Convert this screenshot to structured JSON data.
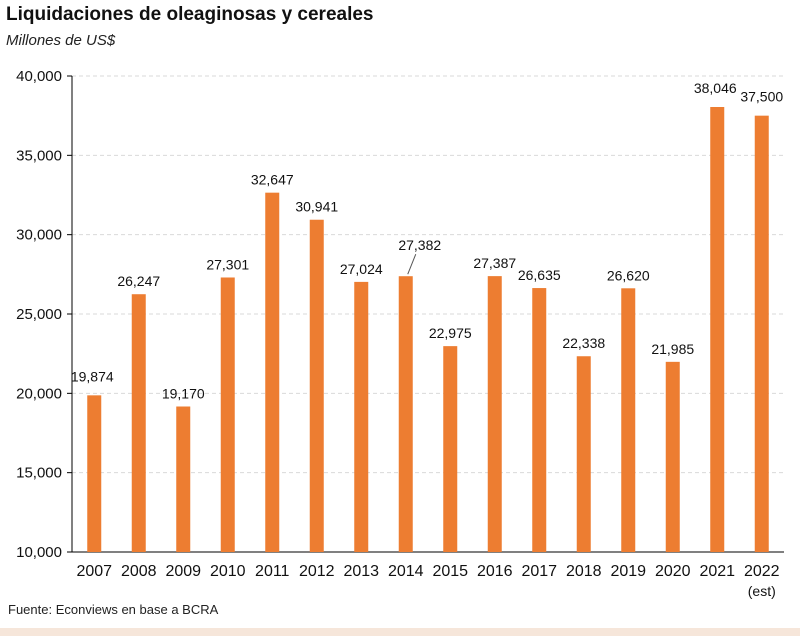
{
  "title": "Liquidaciones de oleaginosas y cereales",
  "subtitle": "Millones de US$",
  "source": "Fuente: Econviews en base a BCRA",
  "colors": {
    "bar": "#ED7D31",
    "grid": "#d9d9d9",
    "axis": "#000000",
    "text": "#111111"
  },
  "chart_data": {
    "type": "bar",
    "categories": [
      "2007",
      "2008",
      "2009",
      "2010",
      "2011",
      "2012",
      "2013",
      "2014",
      "2015",
      "2016",
      "2017",
      "2018",
      "2019",
      "2020",
      "2021",
      "2022"
    ],
    "category_sublabels": [
      "",
      "",
      "",
      "",
      "",
      "",
      "",
      "",
      "",
      "",
      "",
      "",
      "",
      "",
      "",
      "(est)"
    ],
    "values": [
      19874,
      26247,
      19170,
      27301,
      32647,
      30941,
      27024,
      27382,
      22975,
      27387,
      26635,
      22338,
      26620,
      21985,
      38046,
      37500
    ],
    "value_labels": [
      "19,874",
      "26,247",
      "19,170",
      "27,301",
      "32,647",
      "30,941",
      "27,024",
      "27,382",
      "22,975",
      "27,387",
      "26,635",
      "22,338",
      "26,620",
      "21,985",
      "38,046",
      "37,500"
    ],
    "ylim": [
      10000,
      40000
    ],
    "yticks": [
      10000,
      15000,
      20000,
      25000,
      30000,
      35000,
      40000
    ],
    "ytick_labels": [
      "10,000",
      "15,000",
      "20,000",
      "25,000",
      "30,000",
      "35,000",
      "40,000"
    ],
    "grid": true,
    "legend": "none"
  }
}
